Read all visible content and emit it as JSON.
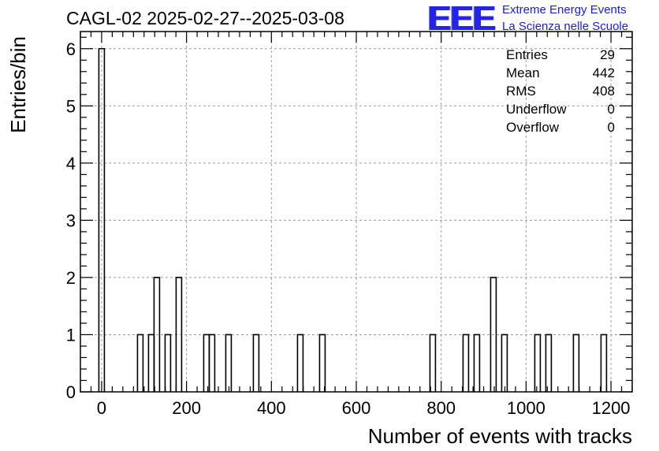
{
  "chart_data": {
    "type": "histogram",
    "title": "CAGL-02 2025-02-27--2025-03-08",
    "xlabel": "Number of events with tracks",
    "ylabel": "Entries/bin",
    "xlim": [
      -50,
      1250
    ],
    "ylim": [
      0,
      6.3
    ],
    "bin_width": 13,
    "xticks": [
      0,
      200,
      400,
      600,
      800,
      1000,
      1200
    ],
    "xtick_labels": [
      "0",
      "200",
      "400",
      "600",
      "800",
      "1000",
      "1200"
    ],
    "yticks": [
      0,
      1,
      2,
      3,
      4,
      5,
      6
    ],
    "ytick_labels": [
      "0",
      "1",
      "2",
      "3",
      "4",
      "5",
      "6"
    ],
    "grid": true,
    "bins": [
      {
        "x": 0,
        "count": 6
      },
      {
        "x": 91,
        "count": 1
      },
      {
        "x": 117,
        "count": 1
      },
      {
        "x": 130,
        "count": 2
      },
      {
        "x": 156,
        "count": 1
      },
      {
        "x": 182,
        "count": 2
      },
      {
        "x": 247,
        "count": 1
      },
      {
        "x": 260,
        "count": 1
      },
      {
        "x": 299,
        "count": 1
      },
      {
        "x": 364,
        "count": 1
      },
      {
        "x": 468,
        "count": 1
      },
      {
        "x": 520,
        "count": 1
      },
      {
        "x": 780,
        "count": 1
      },
      {
        "x": 858,
        "count": 1
      },
      {
        "x": 884,
        "count": 1
      },
      {
        "x": 923,
        "count": 2
      },
      {
        "x": 949,
        "count": 1
      },
      {
        "x": 1027,
        "count": 1
      },
      {
        "x": 1053,
        "count": 1
      },
      {
        "x": 1118,
        "count": 1
      },
      {
        "x": 1183,
        "count": 1
      }
    ]
  },
  "logo": {
    "mark": "EEE",
    "line1": "Extreme Energy Events",
    "line2": "La Scienza nelle Scuole",
    "color": "#2424e8"
  },
  "stats": [
    {
      "label": "Entries",
      "value": "29"
    },
    {
      "label": "Mean",
      "value": "442"
    },
    {
      "label": "RMS",
      "value": "408"
    },
    {
      "label": "Underflow",
      "value": "0"
    },
    {
      "label": "Overflow",
      "value": "0"
    }
  ]
}
